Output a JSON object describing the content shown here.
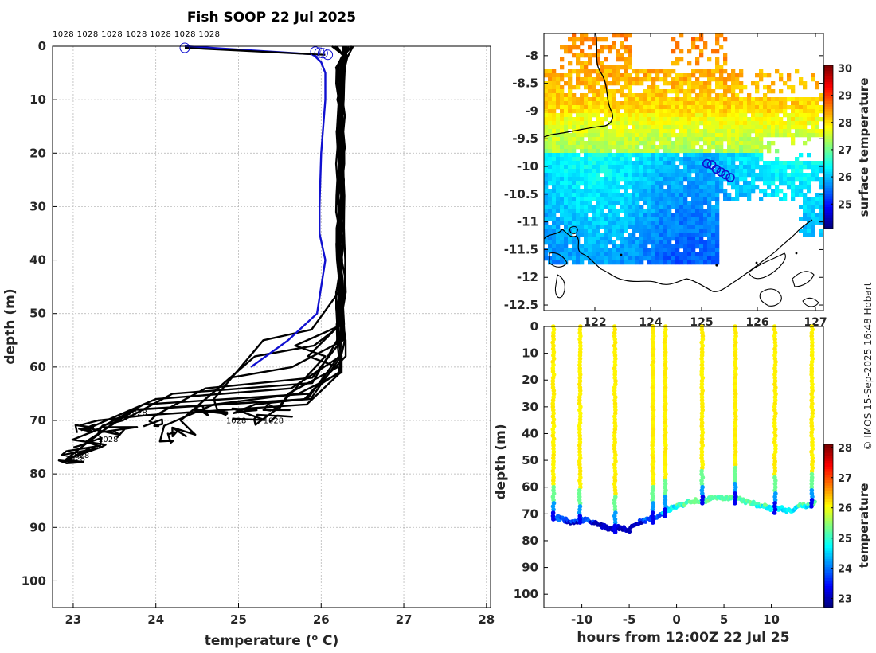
{
  "chart_data": [
    {
      "type": "line",
      "title": "Fish SOOP 22 Jul 2025",
      "xlabel": "temperature (o C)",
      "ylabel": "depth (m)",
      "xlim": [
        22.75,
        28.05
      ],
      "ylim": [
        105,
        0
      ],
      "xticks": [
        "23",
        "24",
        "25",
        "26",
        "27",
        "28"
      ],
      "yticks": [
        "0",
        "10",
        "20",
        "30",
        "40",
        "50",
        "60",
        "70",
        "80",
        "90",
        "100"
      ],
      "grid": true,
      "top_annotation": "1028 1028 1028 1028 1028 1028 1028",
      "depth_annotations": [
        {
          "text": "1028",
          "t": 23.65,
          "d": 69
        },
        {
          "text": "1028",
          "t": 24.85,
          "d": 70.5
        },
        {
          "text": "1028",
          "t": 25.3,
          "d": 70.5
        },
        {
          "text": "1028",
          "t": 23.3,
          "d": 74
        },
        {
          "text": "1028",
          "t": 22.95,
          "d": 77
        },
        {
          "text": "1028",
          "t": 22.9,
          "d": 77.7
        }
      ],
      "latest_profile": {
        "name": "latest profile",
        "color": "#1010d0",
        "temperature": [
          24.35,
          25.9,
          26.0,
          26.05,
          26.05,
          26.0,
          25.98,
          25.98,
          26.05,
          25.95,
          25.6,
          25.15
        ],
        "depth": [
          0,
          1.5,
          3,
          5,
          10,
          20,
          30,
          35,
          40,
          50,
          55,
          60
        ]
      },
      "surface_markers": [
        {
          "t": 24.35,
          "d": 0.3
        },
        {
          "t": 25.93,
          "d": 1.0
        },
        {
          "t": 25.98,
          "d": 1.2
        },
        {
          "t": 26.02,
          "d": 1.3
        },
        {
          "t": 26.08,
          "d": 1.6
        }
      ]
    },
    {
      "type": "heatmap",
      "title": "",
      "colorbar_label": "surface temperature",
      "colorbar_ticks": [
        "25",
        "26",
        "27",
        "28",
        "29",
        "30"
      ],
      "colorbar_range": [
        24.1,
        30.1
      ],
      "xticks": [
        "122",
        "124",
        "125",
        "126",
        "127"
      ],
      "yticks": [
        "-8",
        "-8.5",
        "-9",
        "-9.5",
        "-10",
        "-10.5",
        "-11",
        "-11.5",
        "-12",
        "-12.5"
      ],
      "xlim": [
        121.2,
        127.2
      ],
      "ylim": [
        -12.6,
        -7.6
      ],
      "track_points": [
        {
          "lon": 124.7,
          "lat": -9.95
        },
        {
          "lon": 124.8,
          "lat": -9.97
        },
        {
          "lon": 124.9,
          "lat": -10.05
        },
        {
          "lon": 125.0,
          "lat": -10.1
        },
        {
          "lon": 125.1,
          "lat": -10.15
        },
        {
          "lon": 125.2,
          "lat": -10.2
        }
      ]
    },
    {
      "type": "scatter",
      "xlabel": "hours from 12:00Z 22 Jul 25",
      "ylabel": "depth (m)",
      "xticks": [
        "-10",
        "-5",
        "0",
        "5",
        "10"
      ],
      "yticks": [
        "0",
        "10",
        "20",
        "30",
        "40",
        "50",
        "60",
        "70",
        "80",
        "90",
        "100"
      ],
      "xlim": [
        -14,
        15.5
      ],
      "ylim": [
        105,
        0
      ],
      "colorbar_label": "temperature",
      "colorbar_ticks": [
        "23",
        "24",
        "25",
        "26",
        "27",
        "28"
      ],
      "colorbar_range": [
        22.7,
        28.1
      ],
      "profile_hours": [
        -13,
        -10.2,
        -6.5,
        -2.5,
        -1.2,
        2.7,
        6.2,
        10.4,
        14.3
      ],
      "bottom_depth": {
        "hours": [
          -13,
          -12,
          -11,
          -10,
          -9,
          -8,
          -7,
          -6,
          -5,
          -4,
          -3,
          -2,
          -1,
          0,
          1,
          2,
          3,
          4,
          5,
          6,
          7,
          8,
          9,
          10,
          11,
          12,
          13,
          14,
          14.5
        ],
        "depth": [
          71,
          72,
          73,
          72,
          73,
          74,
          76,
          75,
          76,
          73,
          72,
          71,
          69,
          67,
          66,
          65,
          65,
          64,
          64,
          64,
          65,
          66,
          67,
          68,
          68,
          69,
          67,
          67,
          66
        ]
      }
    }
  ],
  "footer": {
    "copyright": "© IMOS 15-Sep-2025 16:48 Hobart"
  }
}
